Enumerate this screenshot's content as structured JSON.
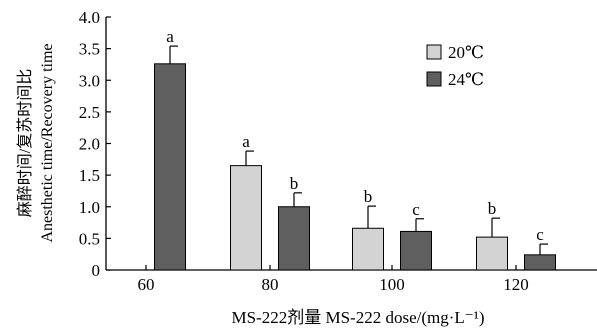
{
  "chart_data": {
    "type": "bar",
    "xlabel": "MS-222剂量 MS-222 dose/(mg·L⁻¹)",
    "ylabel_line1": "麻醉时间/复苏时间比",
    "ylabel_line2": "Anesthetic time/Recovery time",
    "ylim": [
      0,
      4.0
    ],
    "yticks": [
      "0",
      "0.5",
      "1.0",
      "1.5",
      "2.0",
      "2.5",
      "3.0",
      "3.5",
      "4.0"
    ],
    "categories": [
      "60",
      "80",
      "100",
      "120"
    ],
    "legend_position": "top-right",
    "series": [
      {
        "name": "20℃",
        "color": "#d3d3d3",
        "values": [
          null,
          1.65,
          0.66,
          0.52
        ],
        "errors": [
          null,
          0.23,
          0.35,
          0.3
        ],
        "labels": [
          null,
          "a",
          "b",
          "b"
        ]
      },
      {
        "name": "24℃",
        "color": "#5f5f5f",
        "values": [
          3.26,
          1.0,
          0.61,
          0.24
        ],
        "errors": [
          0.28,
          0.22,
          0.2,
          0.17
        ],
        "labels": [
          "a",
          "b",
          "c",
          "c"
        ]
      }
    ]
  }
}
